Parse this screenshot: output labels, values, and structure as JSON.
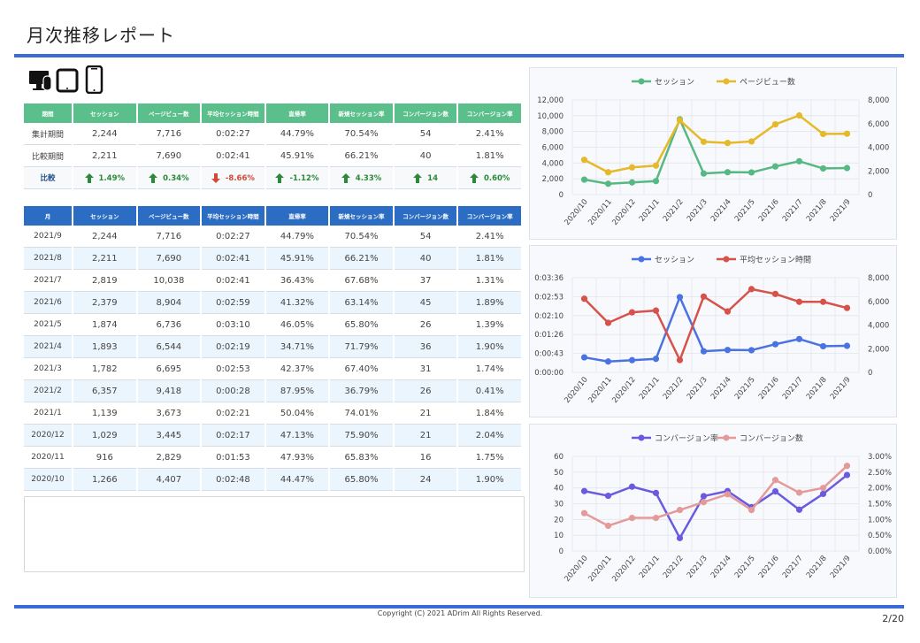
{
  "page": {
    "title": "月次推移レポート",
    "footer": "Copyright (C) 2021 ADrim All Rights Reserved.",
    "page_number": "2/20"
  },
  "devices": {
    "icons": [
      "desktop-icon",
      "tablet-icon",
      "smartphone-icon"
    ]
  },
  "colors": {
    "rule": "#3a6bd6",
    "summary_header": "#5bbf8b",
    "monthly_header": "#2c6dc4",
    "row_alt": "#eaf5fd",
    "up": "#2a8a3a",
    "down": "#d04a3a"
  },
  "summary": {
    "headers": [
      "期間",
      "セッション",
      "ページビュー数",
      "平均セッション時間",
      "直帰率",
      "新規セッション率",
      "コンバージョン数",
      "コンバージョン率"
    ],
    "rows": [
      [
        "集計期間",
        "2,244",
        "7,716",
        "0:02:27",
        "44.79%",
        "70.54%",
        "54",
        "2.41%"
      ],
      [
        "比較期間",
        "2,211",
        "7,690",
        "0:02:41",
        "45.91%",
        "66.21%",
        "40",
        "1.81%"
      ]
    ],
    "comparison": {
      "label": "比較",
      "values": [
        "1.49%",
        "0.34%",
        "-8.66%",
        "-1.12%",
        "4.33%",
        "14",
        "0.60%"
      ],
      "directions": [
        "up",
        "up",
        "down",
        "up",
        "up",
        "up",
        "up"
      ]
    }
  },
  "monthly": {
    "headers": [
      "月",
      "セッション",
      "ページビュー数",
      "平均セッション時間",
      "直帰率",
      "新規セッション率",
      "コンバージョン数",
      "コンバージョン率"
    ],
    "rows": [
      [
        "2021/9",
        "2,244",
        "7,716",
        "0:02:27",
        "44.79%",
        "70.54%",
        "54",
        "2.41%"
      ],
      [
        "2021/8",
        "2,211",
        "7,690",
        "0:02:41",
        "45.91%",
        "66.21%",
        "40",
        "1.81%"
      ],
      [
        "2021/7",
        "2,819",
        "10,038",
        "0:02:41",
        "36.43%",
        "67.68%",
        "37",
        "1.31%"
      ],
      [
        "2021/6",
        "2,379",
        "8,904",
        "0:02:59",
        "41.32%",
        "63.14%",
        "45",
        "1.89%"
      ],
      [
        "2021/5",
        "1,874",
        "6,736",
        "0:03:10",
        "46.05%",
        "65.80%",
        "26",
        "1.39%"
      ],
      [
        "2021/4",
        "1,893",
        "6,544",
        "0:02:19",
        "34.71%",
        "71.79%",
        "36",
        "1.90%"
      ],
      [
        "2021/3",
        "1,782",
        "6,695",
        "0:02:53",
        "42.37%",
        "67.40%",
        "31",
        "1.74%"
      ],
      [
        "2021/2",
        "6,357",
        "9,418",
        "0:00:28",
        "87.95%",
        "36.79%",
        "26",
        "0.41%"
      ],
      [
        "2021/1",
        "1,139",
        "3,673",
        "0:02:21",
        "50.04%",
        "74.01%",
        "21",
        "1.84%"
      ],
      [
        "2020/12",
        "1,029",
        "3,445",
        "0:02:17",
        "47.13%",
        "75.90%",
        "21",
        "2.04%"
      ],
      [
        "2020/11",
        "916",
        "2,829",
        "0:01:53",
        "47.93%",
        "65.83%",
        "16",
        "1.75%"
      ],
      [
        "2020/10",
        "1,266",
        "4,407",
        "0:02:48",
        "44.47%",
        "65.80%",
        "24",
        "1.90%"
      ]
    ]
  },
  "chart_data": [
    {
      "type": "line",
      "categories": [
        "2020/10",
        "2020/11",
        "2020/12",
        "2021/1",
        "2021/2",
        "2021/3",
        "2021/4",
        "2021/5",
        "2021/6",
        "2021/7",
        "2021/8",
        "2021/9"
      ],
      "series": [
        {
          "name": "セッション",
          "axis": "right",
          "color": "#56b883",
          "values": [
            1266,
            916,
            1029,
            1139,
            6357,
            1782,
            1893,
            1874,
            2379,
            2819,
            2211,
            2244
          ]
        },
        {
          "name": "ページビュー数",
          "axis": "left",
          "color": "#e5b92a",
          "values": [
            4407,
            2829,
            3445,
            3673,
            9418,
            6695,
            6544,
            6736,
            8904,
            10038,
            7690,
            7716
          ]
        }
      ],
      "left_axis": {
        "min": 0,
        "max": 12000,
        "ticks": [
          "0",
          "2,000",
          "4,000",
          "6,000",
          "8,000",
          "10,000",
          "12,000"
        ]
      },
      "right_axis": {
        "min": 0,
        "max": 8000,
        "ticks": [
          "0",
          "2,000",
          "4,000",
          "6,000",
          "8,000"
        ]
      },
      "legend": "top-center",
      "grid": true
    },
    {
      "type": "line",
      "categories": [
        "2020/10",
        "2020/11",
        "2020/12",
        "2021/1",
        "2021/2",
        "2021/3",
        "2021/4",
        "2021/5",
        "2021/6",
        "2021/7",
        "2021/8",
        "2021/9"
      ],
      "series": [
        {
          "name": "セッション",
          "axis": "right",
          "color": "#4a72e0",
          "values": [
            1266,
            916,
            1029,
            1139,
            6357,
            1782,
            1893,
            1874,
            2379,
            2819,
            2211,
            2244
          ]
        },
        {
          "name": "平均セッション時間",
          "axis": "left",
          "color": "#d6524a",
          "values": [
            168,
            113,
            137,
            141,
            28,
            173,
            139,
            190,
            179,
            161,
            161,
            147
          ]
        }
      ],
      "left_axis": {
        "min": 0,
        "max": 216,
        "ticks": [
          "0:00:00",
          "0:00:43",
          "0:01:26",
          "0:02:10",
          "0:02:53",
          "0:03:36"
        ]
      },
      "right_axis": {
        "min": 0,
        "max": 8000,
        "ticks": [
          "0",
          "2,000",
          "4,000",
          "6,000",
          "8,000"
        ]
      },
      "legend": "top-center",
      "grid": true
    },
    {
      "type": "line",
      "categories": [
        "2020/10",
        "2020/11",
        "2020/12",
        "2021/1",
        "2021/2",
        "2021/3",
        "2021/4",
        "2021/5",
        "2021/6",
        "2021/7",
        "2021/8",
        "2021/9"
      ],
      "series": [
        {
          "name": "コンバージョン率",
          "axis": "right",
          "color": "#6a5ae0",
          "values": [
            1.9,
            1.75,
            2.04,
            1.84,
            0.41,
            1.74,
            1.9,
            1.39,
            1.89,
            1.31,
            1.81,
            2.41
          ]
        },
        {
          "name": "コンバージョン数",
          "axis": "left",
          "color": "#e49a9a",
          "values": [
            24,
            16,
            21,
            21,
            26,
            31,
            36,
            26,
            45,
            37,
            40,
            54
          ]
        }
      ],
      "left_axis": {
        "min": 0,
        "max": 60,
        "ticks": [
          "0",
          "10",
          "20",
          "30",
          "40",
          "50",
          "60"
        ]
      },
      "right_axis": {
        "min": 0,
        "max": 3,
        "ticks": [
          "0.00%",
          "0.50%",
          "1.00%",
          "1.50%",
          "2.00%",
          "2.50%",
          "3.00%"
        ]
      },
      "legend": "top-center",
      "grid": true
    }
  ]
}
